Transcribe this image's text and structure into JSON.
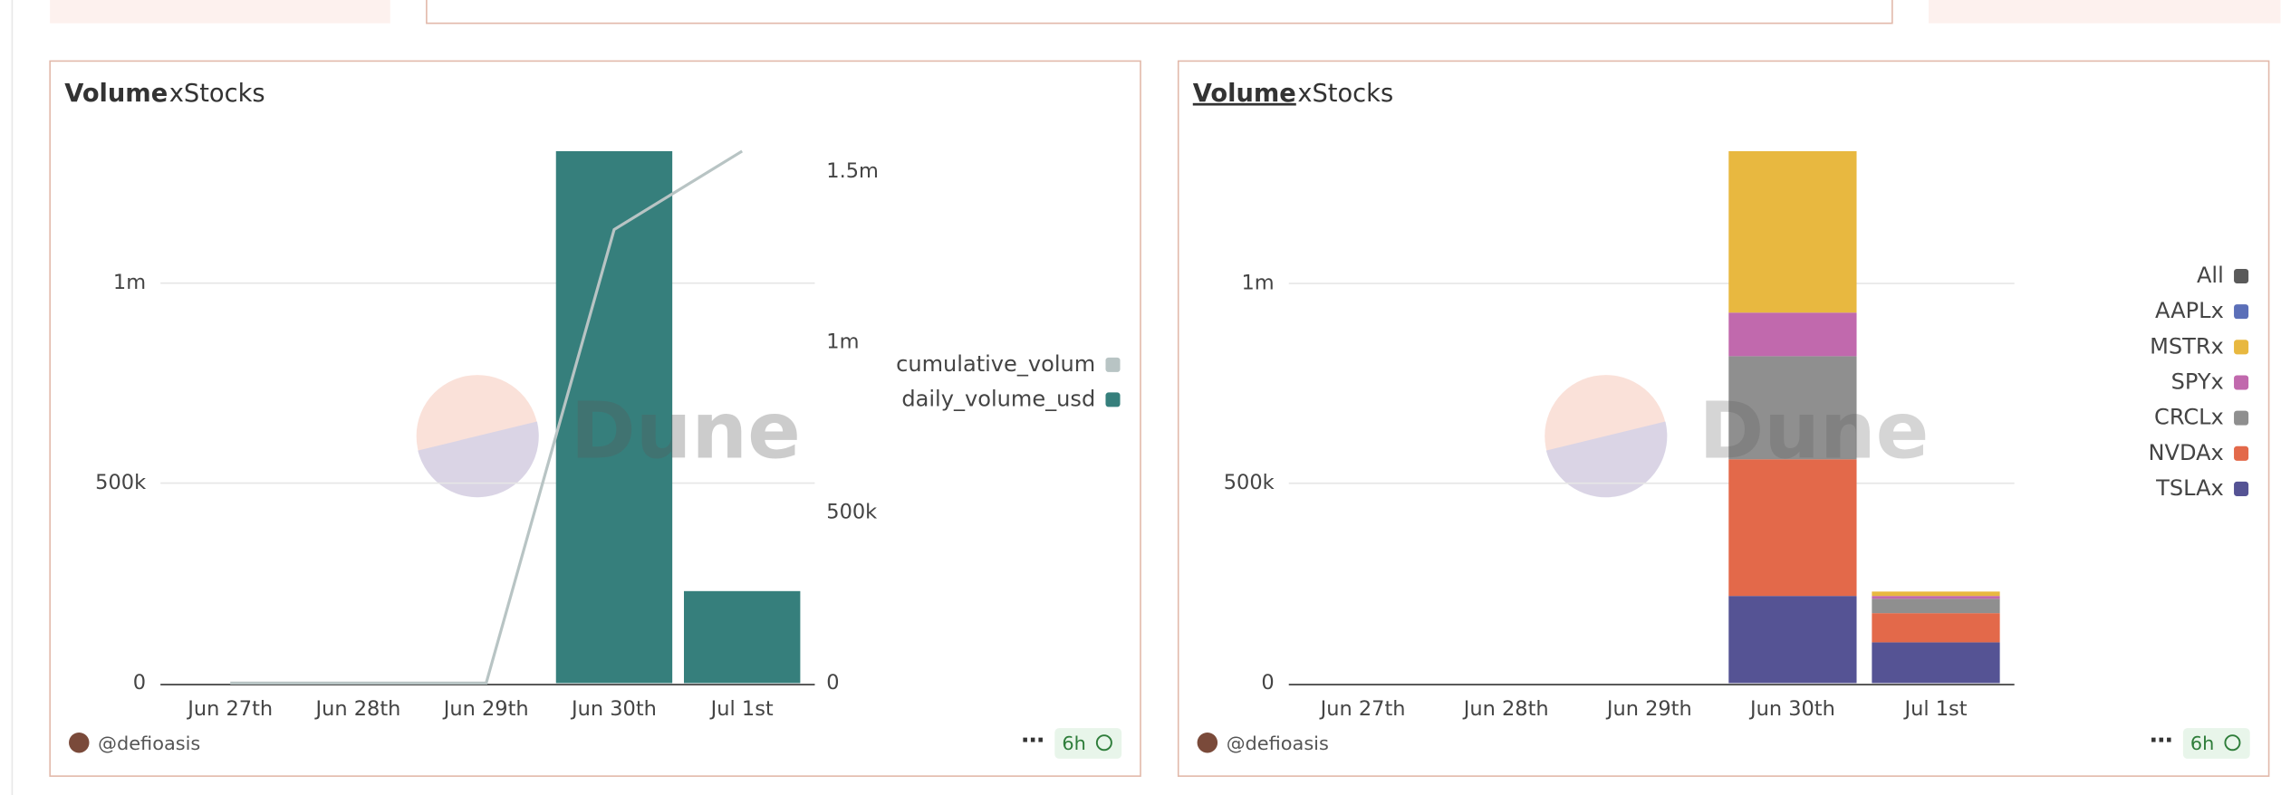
{
  "chart_data": [
    {
      "type": "bar_line",
      "title": "Volume",
      "subtitle": "xStocks",
      "author": "@defioasis",
      "refresh": "6h",
      "watermark": "Dune",
      "categories": [
        "Jun 27th",
        "Jun 28th",
        "Jun 29th",
        "Jun 30th",
        "Jul 1st"
      ],
      "series": [
        {
          "name": "cumulative_volum",
          "color": "#b8c4c4",
          "axis": "y2",
          "kind": "line",
          "values": [
            0,
            0,
            0,
            1330000,
            1560000
          ]
        },
        {
          "name": "daily_volume_usd",
          "color": "#367f7c",
          "kind": "bar",
          "values": [
            0,
            0,
            0,
            1330000,
            230000
          ]
        }
      ],
      "ylim": [
        0,
        1330000
      ],
      "yticks": [
        0,
        {
          "value": 500000,
          "label": "500k"
        },
        {
          "value": 1000000,
          "label": "1m"
        }
      ],
      "y2lim": [
        0,
        1560000
      ],
      "y2ticks": [
        0,
        {
          "value": 500000,
          "label": "500k"
        },
        {
          "value": 1000000,
          "label": "1m"
        },
        {
          "value": 1500000,
          "label": "1.5m"
        }
      ],
      "grid": true,
      "legend": "right"
    },
    {
      "type": "stacked_bar",
      "title": "Volume",
      "subtitle": "xStocks",
      "author": "@defioasis",
      "refresh": "6h",
      "watermark": "Dune",
      "categories": [
        "Jun 27th",
        "Jun 28th",
        "Jun 29th",
        "Jun 30th",
        "Jul 1st"
      ],
      "series": [
        {
          "name": "All",
          "color": "#5a5a5a",
          "values": [
            0,
            0,
            0,
            0,
            0
          ]
        },
        {
          "name": "AAPLx",
          "color": "#5b6fb8",
          "values": [
            0,
            0,
            0,
            0,
            0
          ]
        },
        {
          "name": "MSTRx",
          "color": "#e8b840",
          "values": [
            0,
            0,
            0,
            404000,
            11000
          ]
        },
        {
          "name": "SPYx",
          "color": "#c169ad",
          "values": [
            0,
            0,
            0,
            109000,
            7000
          ]
        },
        {
          "name": "CRCLx",
          "color": "#8f8f8f",
          "values": [
            0,
            0,
            0,
            258000,
            36000
          ]
        },
        {
          "name": "NVDAx",
          "color": "#e3694a",
          "values": [
            0,
            0,
            0,
            342000,
            73000
          ]
        },
        {
          "name": "TSLAx",
          "color": "#555394",
          "values": [
            0,
            0,
            0,
            218000,
            102000
          ]
        }
      ],
      "ylim": [
        0,
        1331000
      ],
      "yticks": [
        0,
        {
          "value": 500000,
          "label": "500k"
        },
        {
          "value": 1000000,
          "label": "1m"
        }
      ],
      "grid": true,
      "legend": "right"
    }
  ]
}
